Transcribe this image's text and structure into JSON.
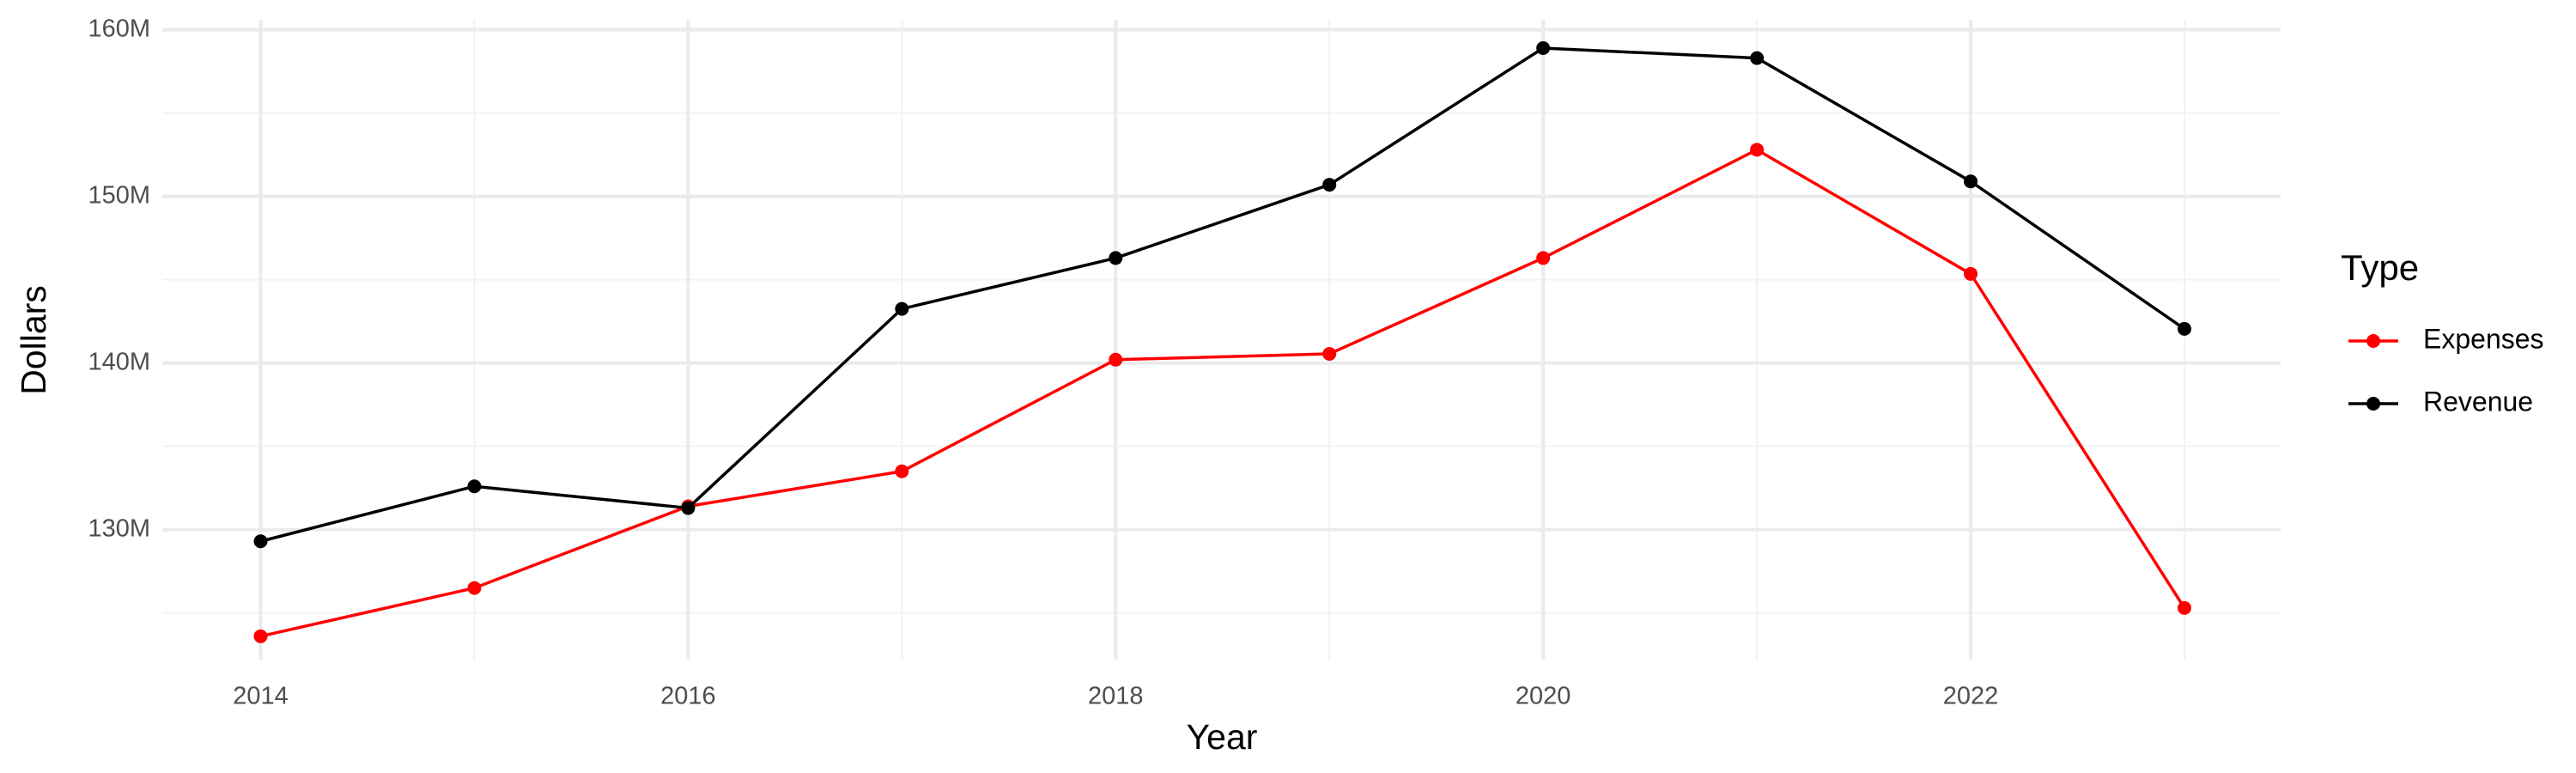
{
  "chart_data": {
    "type": "line",
    "x_label": "Year",
    "y_label": "Dollars",
    "legend_title": "Type",
    "x": [
      2014,
      2015,
      2016,
      2017,
      2018,
      2019,
      2020,
      2021,
      2022,
      2023
    ],
    "series": [
      {
        "name": "Expenses",
        "color": "#ff0000",
        "values": [
          123600000,
          126500000,
          131400000,
          133500000,
          140200000,
          140550000,
          146300000,
          152800000,
          145350000,
          125300000
        ]
      },
      {
        "name": "Revenue",
        "color": "#000000",
        "values": [
          129300000,
          132600000,
          131300000,
          143250000,
          146300000,
          150700000,
          158900000,
          158300000,
          150900000,
          142050000
        ]
      }
    ],
    "xlim": [
      2013.54,
      2023.45
    ],
    "xticks": [
      2014,
      2016,
      2018,
      2020,
      2022
    ],
    "ylim": [
      122200000,
      160600000
    ],
    "yticks": [
      {
        "value": 130000000,
        "label": "130M"
      },
      {
        "value": 140000000,
        "label": "140M"
      },
      {
        "value": 150000000,
        "label": "150M"
      },
      {
        "value": 160000000,
        "label": "160M"
      }
    ],
    "grid": true,
    "legend": "right"
  }
}
